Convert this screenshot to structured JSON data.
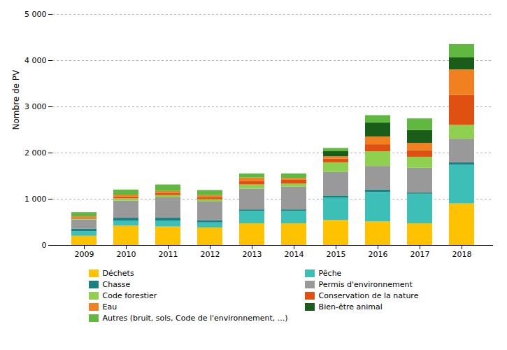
{
  "chart_data": {
    "type": "bar",
    "stacked": true,
    "categories": [
      2009,
      2010,
      2011,
      2012,
      2013,
      2014,
      2015,
      2016,
      2017,
      2018
    ],
    "series": [
      {
        "name": "Déchets",
        "color": "#FFC200",
        "values": [
          200,
          420,
          400,
          380,
          470,
          470,
          540,
          510,
          470,
          900
        ]
      },
      {
        "name": "Pêche",
        "color": "#3DBFB8",
        "values": [
          100,
          110,
          130,
          110,
          270,
          270,
          490,
          640,
          640,
          840
        ]
      },
      {
        "name": "Chasse",
        "color": "#1A8080",
        "values": [
          50,
          60,
          60,
          50,
          30,
          30,
          40,
          50,
          30,
          50
        ]
      },
      {
        "name": "Permis d'environnement",
        "color": "#999999",
        "values": [
          200,
          370,
          440,
          400,
          450,
          490,
          510,
          510,
          530,
          510
        ]
      },
      {
        "name": "Code forestier",
        "color": "#90D050",
        "values": [
          20,
          50,
          50,
          50,
          90,
          70,
          210,
          320,
          240,
          300
        ]
      },
      {
        "name": "Conservation de la nature",
        "color": "#E05010",
        "values": [
          25,
          40,
          50,
          50,
          80,
          80,
          80,
          150,
          140,
          650
        ]
      },
      {
        "name": "Eau",
        "color": "#F08020",
        "values": [
          25,
          40,
          40,
          40,
          70,
          40,
          50,
          170,
          160,
          550
        ]
      },
      {
        "name": "Bien-être animal",
        "color": "#1A5C1A",
        "values": [
          0,
          0,
          0,
          0,
          0,
          0,
          110,
          300,
          280,
          260
        ]
      },
      {
        "name": "Autres (bruit, sols, Code de l'environnement, ...)",
        "color": "#60B840",
        "values": [
          90,
          110,
          140,
          110,
          90,
          100,
          70,
          160,
          250,
          290
        ]
      }
    ],
    "ylabel": "Nombre de PV",
    "ylim": [
      0,
      5000
    ],
    "yticks": [
      0,
      {
        "value": 1000,
        "label": "1 000"
      },
      {
        "value": 2000,
        "label": "2 000"
      },
      {
        "value": 3000,
        "label": "3 000"
      },
      {
        "value": 4000,
        "label": "4 000"
      },
      {
        "value": 5000,
        "label": "5 000"
      }
    ],
    "grid": true,
    "legend": "bottom"
  }
}
